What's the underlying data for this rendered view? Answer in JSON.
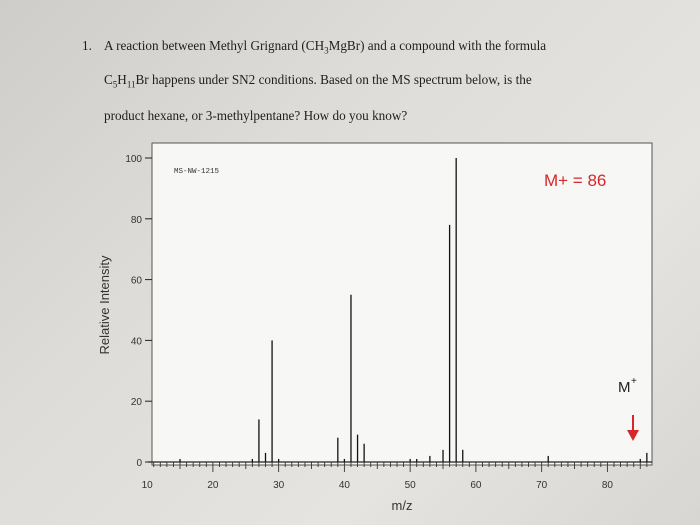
{
  "question": {
    "number": "1.",
    "line1": "A reaction between Methyl Grignard (CH3MgBr) and a compound with the formula",
    "line2": "C5H11Br happens under SN2 conditions. Based on the MS spectrum below, is the",
    "line3": "product hexane, or 3-methylpentane? How do you know?"
  },
  "chart_data": {
    "type": "bar",
    "id_label": "MS-NW-1215",
    "xlabel": "m/z",
    "ylabel": "Relative Intensity",
    "xlim": [
      8,
      88
    ],
    "ylim": [
      0,
      100
    ],
    "xticks": [
      10,
      20,
      30,
      40,
      50,
      60,
      70,
      80
    ],
    "yticks": [
      0,
      20,
      40,
      60,
      80,
      100
    ],
    "peaks": [
      {
        "x": 15,
        "y": 1
      },
      {
        "x": 26,
        "y": 1
      },
      {
        "x": 27,
        "y": 14
      },
      {
        "x": 28,
        "y": 3
      },
      {
        "x": 29,
        "y": 40
      },
      {
        "x": 30,
        "y": 1
      },
      {
        "x": 39,
        "y": 8
      },
      {
        "x": 40,
        "y": 1
      },
      {
        "x": 41,
        "y": 55
      },
      {
        "x": 42,
        "y": 9
      },
      {
        "x": 43,
        "y": 6
      },
      {
        "x": 50,
        "y": 1
      },
      {
        "x": 51,
        "y": 1
      },
      {
        "x": 53,
        "y": 2
      },
      {
        "x": 55,
        "y": 4
      },
      {
        "x": 56,
        "y": 78
      },
      {
        "x": 57,
        "y": 100
      },
      {
        "x": 58,
        "y": 4
      },
      {
        "x": 71,
        "y": 2
      },
      {
        "x": 85,
        "y": 1
      },
      {
        "x": 86,
        "y": 3
      }
    ],
    "annotations": {
      "mplus_text": "M+ = 86",
      "mplus_color": "#d4282c",
      "mplus_marker": "M",
      "mplus_marker_sup": "+"
    }
  }
}
